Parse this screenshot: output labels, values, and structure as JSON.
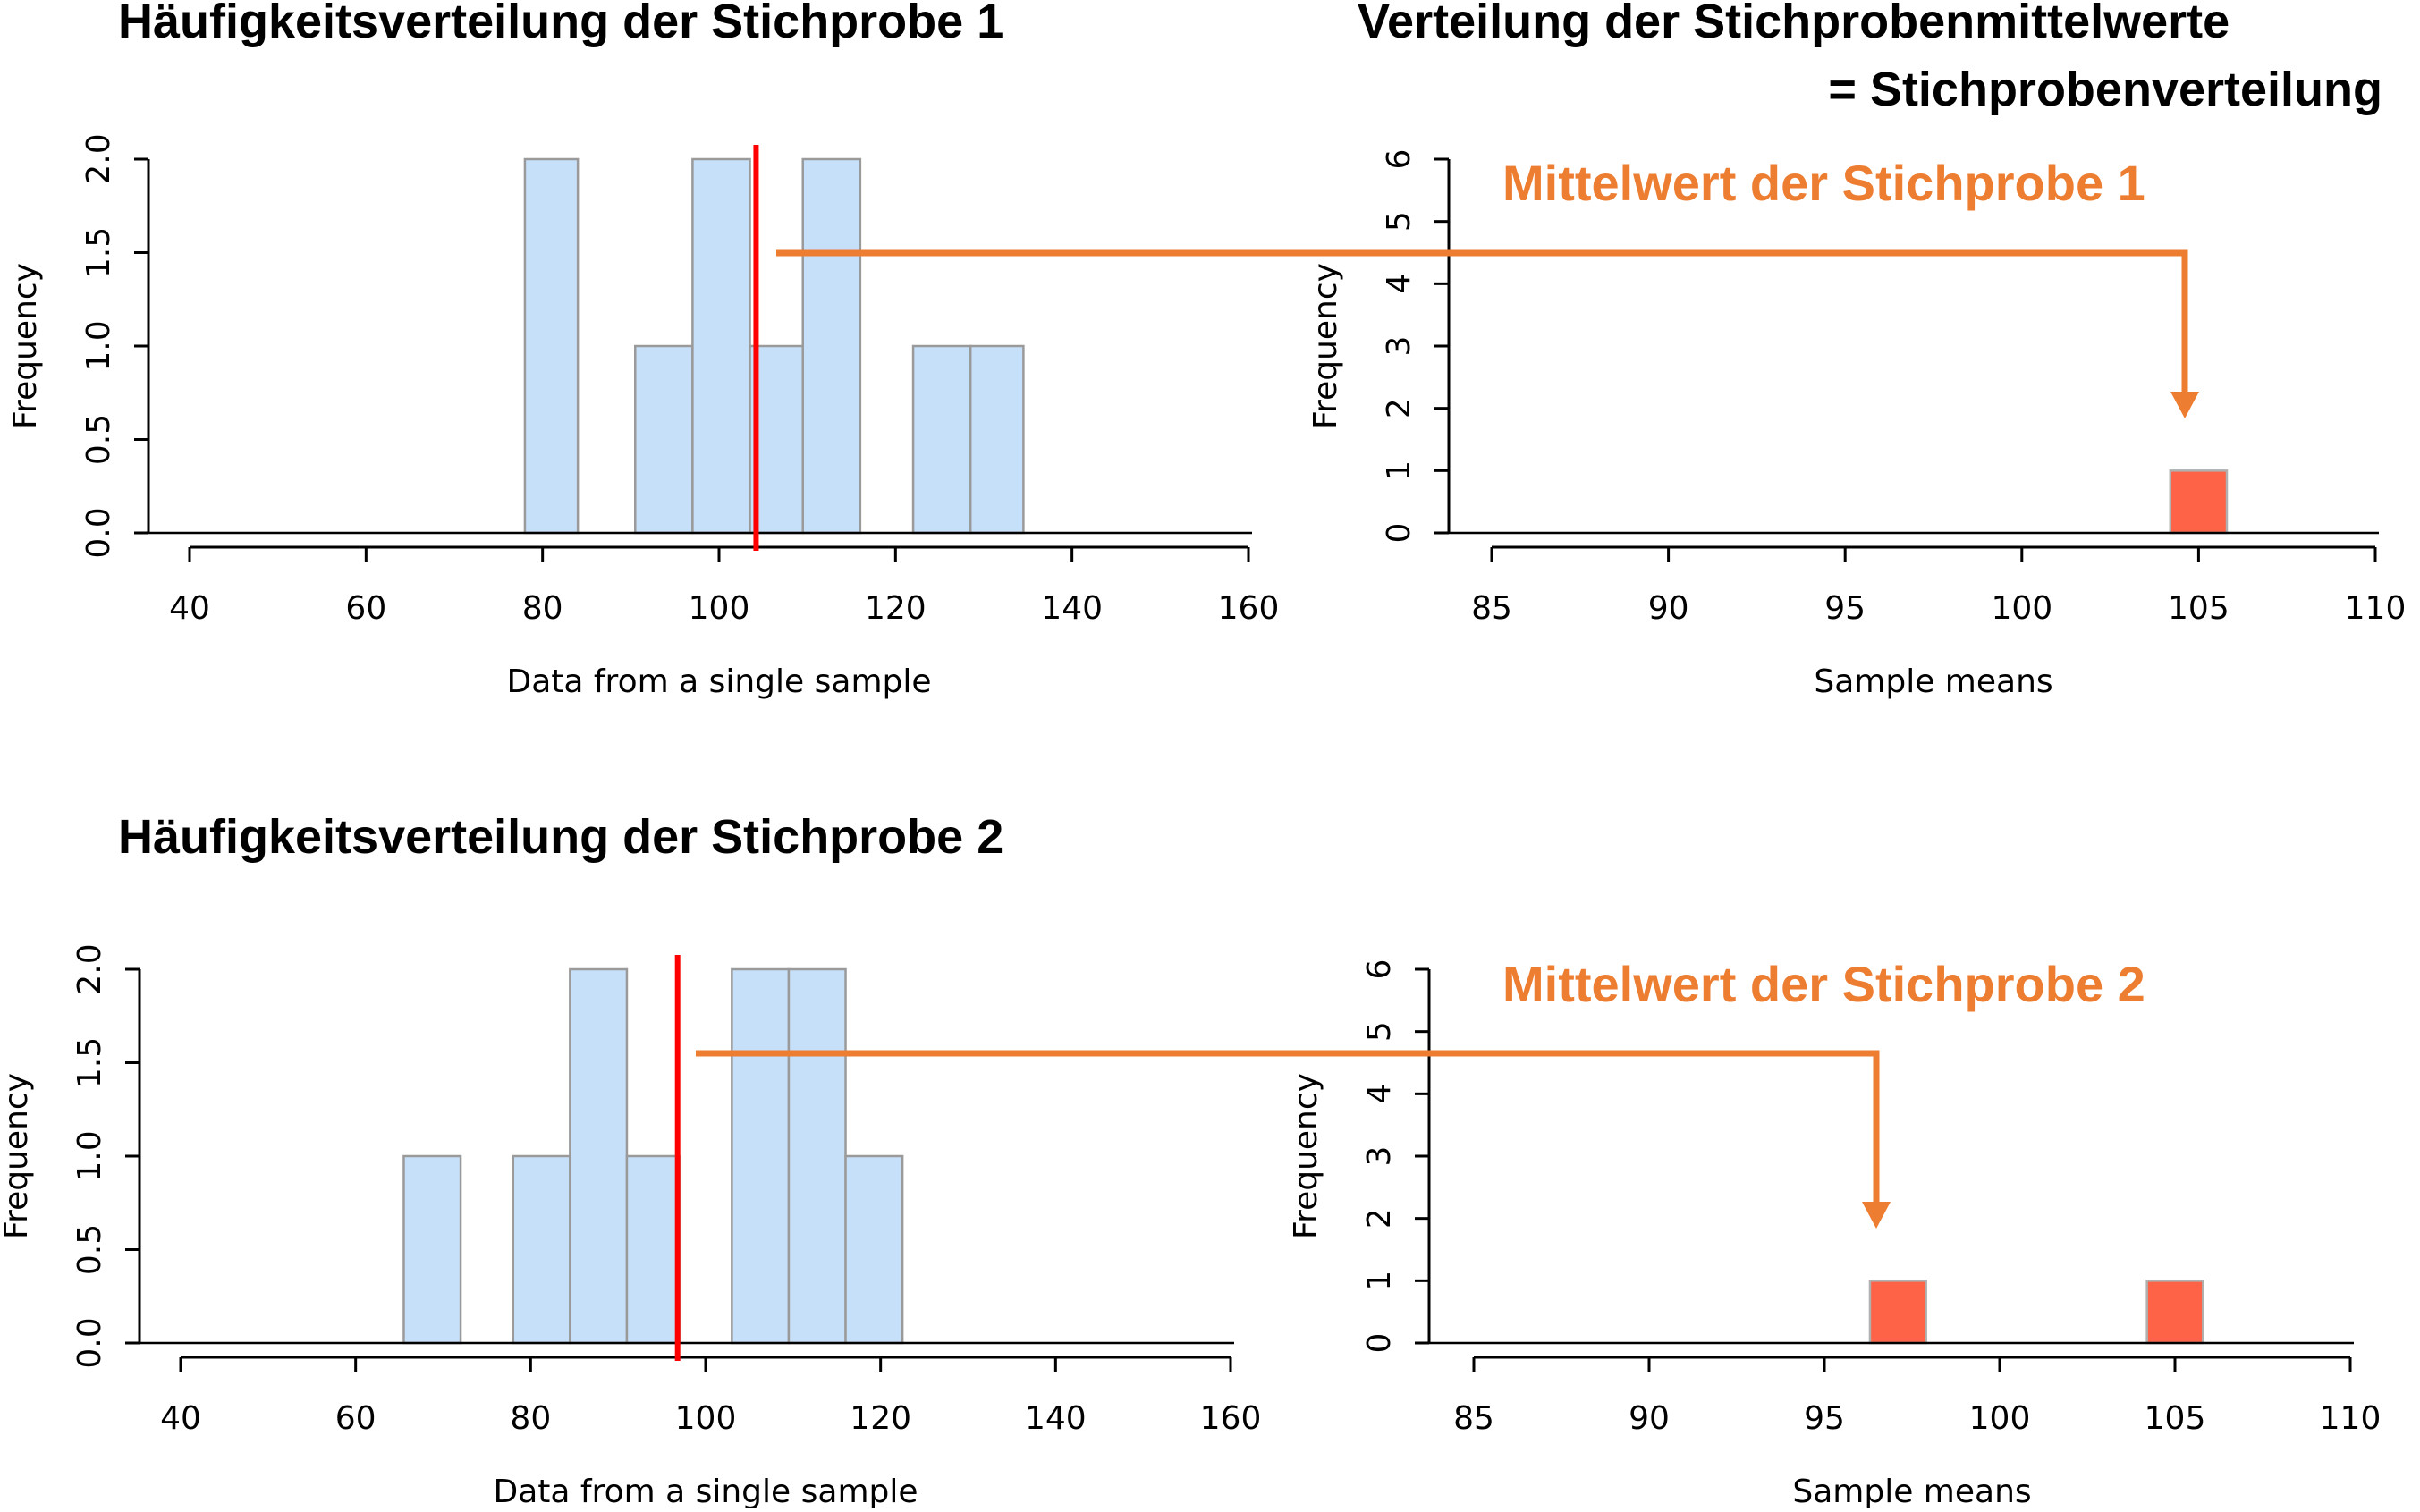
{
  "titles": {
    "sample1": "Häufigkeitsverteilung der Stichprobe 1",
    "sample2": "Häufigkeitsverteilung der Stichprobe 2",
    "means_line1": "Verteilung der Stichprobenmittelwerte",
    "means_line2": "= Stichprobenverteilung"
  },
  "callouts": {
    "mean1": "Mittelwert der Stichprobe 1",
    "mean2": "Mittelwert der Stichprobe 2"
  },
  "colors": {
    "sample_bar": "#C7E0FA",
    "sample_bar_edge": "#9A9A9A",
    "mean_line": "#FF0000",
    "means_bar": "#FF6347",
    "callout": "#ED7D31"
  },
  "chart_data": [
    {
      "type": "bar",
      "xlabel": "Data from a single sample",
      "ylabel": "Frequency",
      "xlim": [
        40,
        160
      ],
      "ylim": [
        0,
        2
      ],
      "x_ticks": [
        "40",
        "60",
        "80",
        "100",
        "120",
        "140",
        "160"
      ],
      "y_ticks": [
        "0.0",
        "0.5",
        "1.0",
        "1.5",
        "2.0"
      ],
      "bins": [
        {
          "from": 78,
          "to": 84,
          "count": 2
        },
        {
          "from": 90.5,
          "to": 97,
          "count": 1
        },
        {
          "from": 97,
          "to": 103.5,
          "count": 2
        },
        {
          "from": 103.5,
          "to": 109.5,
          "count": 1
        },
        {
          "from": 109.5,
          "to": 116,
          "count": 2
        },
        {
          "from": 122,
          "to": 128.5,
          "count": 1
        },
        {
          "from": 128.5,
          "to": 134.5,
          "count": 1
        }
      ],
      "mean": 104.2
    },
    {
      "type": "bar",
      "xlabel": "Sample means",
      "ylabel": "Frequency",
      "xlim": [
        85,
        110
      ],
      "ylim": [
        0,
        6
      ],
      "x_ticks": [
        "85",
        "90",
        "95",
        "100",
        "105",
        "110"
      ],
      "y_ticks": [
        "0",
        "1",
        "2",
        "3",
        "4",
        "5",
        "6"
      ],
      "bins": [
        {
          "from": 104.2,
          "to": 105.8,
          "count": 1
        }
      ]
    },
    {
      "type": "bar",
      "xlabel": "Data from a single sample",
      "ylabel": "Frequency",
      "xlim": [
        40,
        160
      ],
      "ylim": [
        0,
        2
      ],
      "x_ticks": [
        "40",
        "60",
        "80",
        "100",
        "120",
        "140",
        "160"
      ],
      "y_ticks": [
        "0.0",
        "0.5",
        "1.0",
        "1.5",
        "2.0"
      ],
      "bins": [
        {
          "from": 65.5,
          "to": 72,
          "count": 1
        },
        {
          "from": 78,
          "to": 84.5,
          "count": 1
        },
        {
          "from": 84.5,
          "to": 91,
          "count": 2
        },
        {
          "from": 91,
          "to": 97,
          "count": 1
        },
        {
          "from": 103,
          "to": 109.5,
          "count": 2
        },
        {
          "from": 109.5,
          "to": 116,
          "count": 2
        },
        {
          "from": 116,
          "to": 122.5,
          "count": 1
        }
      ],
      "mean": 96.8
    },
    {
      "type": "bar",
      "xlabel": "Sample means",
      "ylabel": "Frequency",
      "xlim": [
        85,
        110
      ],
      "ylim": [
        0,
        6
      ],
      "x_ticks": [
        "85",
        "90",
        "95",
        "100",
        "105",
        "110"
      ],
      "y_ticks": [
        "0",
        "1",
        "2",
        "3",
        "4",
        "5",
        "6"
      ],
      "bins": [
        {
          "from": 96.3,
          "to": 97.9,
          "count": 1
        },
        {
          "from": 104.2,
          "to": 105.8,
          "count": 1
        }
      ]
    }
  ]
}
